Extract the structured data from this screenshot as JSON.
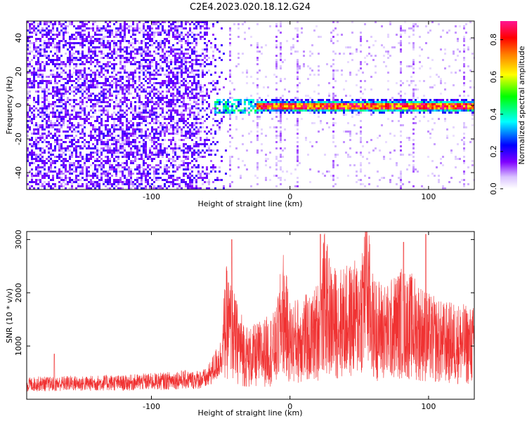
{
  "title": "C2E4.2023.020.18.12.G24",
  "chart_data": [
    {
      "type": "heatmap",
      "title": "C2E4.2023.020.18.12.G24",
      "xlabel": "Height of straight line (km)",
      "ylabel": "Frequency (Hz)",
      "xlim": [
        -190,
        133
      ],
      "ylim": [
        -50,
        50
      ],
      "x_ticks": [
        -100,
        0,
        100
      ],
      "y_ticks": [
        -40,
        -20,
        0,
        20,
        40
      ],
      "colorbar": {
        "label": "Normalized spectral amplitude",
        "range": [
          0,
          0.9
        ],
        "ticks": [
          0.0,
          0.2,
          0.4,
          0.6,
          0.8
        ],
        "colors": [
          "#ffffff",
          "#d9c2ff",
          "#7f00ff",
          "#0000ff",
          "#00ffff",
          "#00ff00",
          "#ffff00",
          "#ff7f00",
          "#ff0000",
          "#ff1493"
        ]
      },
      "features": {
        "noise_region_end_km": -45,
        "carrier_line_start_km": -55,
        "carrier_line_frequency_hz": 0
      }
    },
    {
      "type": "line",
      "xlabel": "Height of straight line (km)",
      "ylabel": "SNR (10 * v/v)",
      "xlim": [
        -190,
        133
      ],
      "ylim": [
        0,
        3150
      ],
      "x_ticks": [
        -100,
        0,
        100
      ],
      "y_ticks": [
        1000,
        2000,
        3000
      ],
      "color": "#f03232",
      "series": [
        {
          "x": [
            -190,
            -180,
            -170,
            -160,
            -150,
            -140,
            -130,
            -120,
            -110,
            -100,
            -90,
            -80,
            -70,
            -60,
            -50,
            -46,
            -42,
            -38,
            -34,
            -30,
            -20,
            -10,
            -5,
            0,
            10,
            15,
            20,
            25,
            30,
            40,
            50,
            55,
            60,
            70,
            80,
            90,
            95,
            100,
            110,
            120,
            130
          ],
          "y": [
            280,
            300,
            290,
            310,
            300,
            310,
            320,
            310,
            330,
            340,
            350,
            380,
            370,
            400,
            800,
            1500,
            1300,
            1100,
            950,
            800,
            900,
            1000,
            1700,
            1100,
            1200,
            1150,
            1350,
            1900,
            1500,
            1500,
            1600,
            2200,
            1400,
            1300,
            1500,
            1400,
            1300,
            1200,
            1100,
            1100,
            1050
          ],
          "peaks": [
            {
              "x": -170,
              "y": 850
            },
            {
              "x": -42,
              "y": 3000
            },
            {
              "x": 22,
              "y": 3100
            },
            {
              "x": 55,
              "y": 3150
            },
            {
              "x": 82,
              "y": 2950
            },
            {
              "x": 98,
              "y": 3100
            }
          ]
        }
      ]
    }
  ]
}
